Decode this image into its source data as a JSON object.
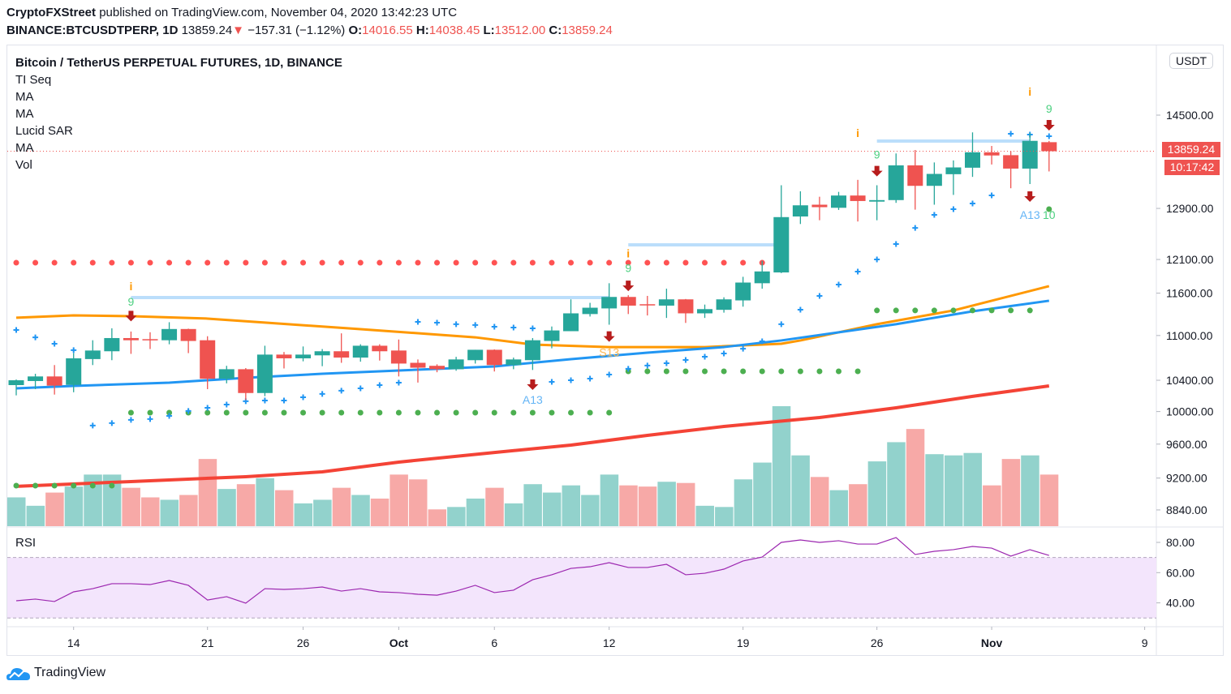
{
  "header": {
    "publisher": "CryptoFXStreet",
    "published_text": "published on TradingView.com, November 04, 2020 13:42:23 UTC",
    "symbol": "BINANCE:BTCUSDTPERP, 1D",
    "last": "13859.24",
    "change": "−157.31 (−1.12%)",
    "o_label": "O:",
    "o": "14016.55",
    "h_label": "H:",
    "h": "14038.45",
    "l_label": "L:",
    "l": "13512.00",
    "c_label": "C:",
    "c": "13859.24"
  },
  "legend": {
    "title": "Bitcoin / TetherUS PERPETUAL FUTURES, 1D, BINANCE",
    "items": [
      "TI Seq",
      "MA",
      "MA",
      "Lucid SAR",
      "MA",
      "Vol"
    ]
  },
  "price_axis": {
    "currency": "USDT",
    "last_price": "13859.24",
    "countdown": "10:17:42",
    "ticks": [
      "14500.00",
      "12900.00",
      "12100.00",
      "11600.00",
      "11000.00",
      "10400.00",
      "10000.00",
      "9600.00",
      "9200.00",
      "8840.00"
    ]
  },
  "rsi": {
    "label": "RSI",
    "ticks": [
      "80.00",
      "60.00",
      "40.00"
    ],
    "upper_band": 70,
    "lower_band": 30
  },
  "time_axis": [
    {
      "label": "14",
      "date": "2020-09-14",
      "bold": false
    },
    {
      "label": "21",
      "date": "2020-09-21",
      "bold": false
    },
    {
      "label": "26",
      "date": "2020-09-26",
      "bold": false
    },
    {
      "label": "Oct",
      "date": "2020-10-01",
      "bold": true
    },
    {
      "label": "6",
      "date": "2020-10-06",
      "bold": false
    },
    {
      "label": "12",
      "date": "2020-10-12",
      "bold": false
    },
    {
      "label": "19",
      "date": "2020-10-19",
      "bold": false
    },
    {
      "label": "26",
      "date": "2020-10-26",
      "bold": false
    },
    {
      "label": "Nov",
      "date": "2020-11-01",
      "bold": true
    },
    {
      "label": "9",
      "date": "2020-11-09",
      "bold": false
    }
  ],
  "footer": {
    "brand": "TradingView"
  },
  "colors": {
    "up": "#26a69a",
    "down": "#ef5350",
    "vol_up": "#92d2cc",
    "vol_down": "#f7a9a7",
    "ma_orange": "#ff9800",
    "ma_blue": "#2196f3",
    "ma_red": "#f44336",
    "sar_red": "#ff5252",
    "sar_green": "#4caf50",
    "cross": "#2196f3",
    "rsi": "#9c27b0",
    "rsi_band": "#f3e5fc",
    "resistance": "#bbdefb",
    "arrow": "#b71c1c",
    "setup_i": "#ff9800",
    "count": "#4cd080",
    "a13": "#64b5f6",
    "s13": "#ffb74d"
  },
  "chart_data": {
    "type": "candlestick",
    "scale": "log",
    "ylim": [
      8840,
      14500
    ],
    "columns": [
      "date",
      "open",
      "high",
      "low",
      "close",
      "volume_relative_pct"
    ],
    "candles": [
      [
        "2020-09-11",
        10337,
        10410,
        10205,
        10400,
        24
      ],
      [
        "2020-09-12",
        10390,
        10485,
        10285,
        10450,
        17
      ],
      [
        "2020-09-13",
        10450,
        10600,
        10215,
        10330,
        28
      ],
      [
        "2020-09-14",
        10340,
        10760,
        10245,
        10690,
        33
      ],
      [
        "2020-09-15",
        10680,
        10935,
        10600,
        10795,
        43
      ],
      [
        "2020-09-16",
        10785,
        11100,
        10665,
        10965,
        43
      ],
      [
        "2020-09-17",
        10965,
        11055,
        10750,
        10935,
        32
      ],
      [
        "2020-09-18",
        10950,
        11045,
        10815,
        10945,
        24
      ],
      [
        "2020-09-19",
        10935,
        11185,
        10880,
        11090,
        22
      ],
      [
        "2020-09-20",
        11090,
        11095,
        10760,
        10925,
        26
      ],
      [
        "2020-09-21",
        10935,
        10990,
        10285,
        10420,
        56
      ],
      [
        "2020-09-22",
        10420,
        10590,
        10360,
        10545,
        31
      ],
      [
        "2020-09-23",
        10545,
        10560,
        10145,
        10235,
        35
      ],
      [
        "2020-09-24",
        10235,
        10860,
        10195,
        10740,
        40
      ],
      [
        "2020-09-25",
        10740,
        10775,
        10555,
        10690,
        30
      ],
      [
        "2020-09-26",
        10690,
        10850,
        10650,
        10740,
        19
      ],
      [
        "2020-09-27",
        10730,
        10815,
        10585,
        10785,
        22
      ],
      [
        "2020-09-28",
        10785,
        11030,
        10630,
        10700,
        32
      ],
      [
        "2020-09-29",
        10700,
        10880,
        10645,
        10860,
        26
      ],
      [
        "2020-09-30",
        10860,
        10880,
        10660,
        10785,
        23
      ],
      [
        "2020-10-01",
        10795,
        10945,
        10450,
        10620,
        43
      ],
      [
        "2020-10-02",
        10630,
        10675,
        10370,
        10565,
        39
      ],
      [
        "2020-10-03",
        10590,
        10610,
        10505,
        10545,
        14
      ],
      [
        "2020-10-04",
        10545,
        10710,
        10525,
        10675,
        16
      ],
      [
        "2020-10-05",
        10665,
        10805,
        10620,
        10805,
        23
      ],
      [
        "2020-10-06",
        10805,
        10810,
        10515,
        10600,
        32
      ],
      [
        "2020-10-07",
        10600,
        10700,
        10545,
        10675,
        19
      ],
      [
        "2020-10-08",
        10665,
        10965,
        10535,
        10935,
        35
      ],
      [
        "2020-10-09",
        10925,
        11125,
        10825,
        11070,
        28
      ],
      [
        "2020-10-10",
        11060,
        11510,
        11060,
        11310,
        34
      ],
      [
        "2020-10-11",
        11300,
        11460,
        11265,
        11390,
        26
      ],
      [
        "2020-10-12",
        11380,
        11745,
        11150,
        11545,
        43
      ],
      [
        "2020-10-13",
        11545,
        11570,
        11300,
        11420,
        34
      ],
      [
        "2020-10-14",
        11440,
        11560,
        11280,
        11430,
        33
      ],
      [
        "2020-10-15",
        11420,
        11665,
        11245,
        11510,
        37
      ],
      [
        "2020-10-16",
        11510,
        11515,
        11175,
        11310,
        36
      ],
      [
        "2020-10-17",
        11310,
        11435,
        11245,
        11370,
        17
      ],
      [
        "2020-10-18",
        11360,
        11540,
        11320,
        11510,
        16
      ],
      [
        "2020-10-19",
        11495,
        11840,
        11405,
        11755,
        39
      ],
      [
        "2020-10-20",
        11745,
        12080,
        11665,
        11920,
        53
      ],
      [
        "2020-10-21",
        11905,
        13280,
        11895,
        12760,
        100
      ],
      [
        "2020-10-22",
        12770,
        13180,
        12650,
        12950,
        59
      ],
      [
        "2020-10-23",
        12960,
        13090,
        12710,
        12920,
        41
      ],
      [
        "2020-10-24",
        12910,
        13170,
        12875,
        13110,
        30
      ],
      [
        "2020-10-25",
        13110,
        13370,
        12690,
        13020,
        35
      ],
      [
        "2020-10-26",
        13010,
        13280,
        12710,
        13035,
        54
      ],
      [
        "2020-10-27",
        13035,
        13820,
        12990,
        13615,
        70
      ],
      [
        "2020-10-28",
        13615,
        13880,
        12880,
        13270,
        81
      ],
      [
        "2020-10-29",
        13270,
        13665,
        12960,
        13470,
        60
      ],
      [
        "2020-10-30",
        13465,
        13700,
        13120,
        13580,
        59
      ],
      [
        "2020-10-31",
        13575,
        14190,
        13420,
        13840,
        61
      ],
      [
        "2020-11-01",
        13840,
        13950,
        13630,
        13785,
        34
      ],
      [
        "2020-11-02",
        13790,
        13860,
        13230,
        13560,
        56
      ],
      [
        "2020-11-03",
        13560,
        14180,
        13300,
        14040,
        59
      ],
      [
        "2020-11-04",
        14016.55,
        14038.45,
        13512,
        13859.24,
        43
      ]
    ],
    "crosses": [
      11077,
      10975,
      10887,
      10800,
      9826,
      9856,
      9896,
      9906,
      9946,
      10007,
      10047,
      10088,
      10130,
      10140,
      10140,
      10181,
      10223,
      10265,
      10295,
      10337,
      10369,
      11190,
      11178,
      11157,
      11146,
      11122,
      11110,
      11099,
      10379,
      10400,
      10421,
      10475,
      10550,
      10593,
      10625,
      10668,
      10712,
      10755,
      10820,
      10920,
      11157,
      11361,
      11559,
      11725,
      11918,
      12100,
      12337,
      12589,
      12796,
      12888,
      12979,
      13112,
      14165,
      14150,
      14121
    ],
    "sar_green": [
      9113,
      9113,
      9113,
      9113,
      9113,
      9113,
      9986,
      9986,
      9986,
      9986,
      9986,
      9986,
      9986,
      9986,
      9986,
      9986,
      9986,
      9986,
      9986,
      9986,
      9986,
      9986,
      9986,
      9986,
      9986,
      9986,
      9986,
      9986,
      9986,
      9986,
      9986,
      9986,
      10517,
      10517,
      10517,
      10517,
      10517,
      10517,
      10517,
      10517,
      10517,
      10517,
      10517,
      10517,
      10517,
      11351,
      11351,
      11351,
      11351,
      11351,
      11351,
      11351,
      11351,
      11351,
      12888
    ],
    "sar_red": [
      12051,
      12051,
      12051,
      12051,
      12051,
      12051,
      12051,
      12051,
      12051,
      12051,
      12051,
      12051,
      12051,
      12051,
      12051,
      12051,
      12051,
      12051,
      12051,
      12051,
      12051,
      12051,
      12051,
      12051,
      12051,
      12051,
      12051,
      12051,
      12051,
      12051,
      12051,
      12051,
      12051,
      12051,
      12051,
      12051,
      12051,
      12051,
      12051,
      12051,
      null,
      null,
      null,
      null,
      null,
      null,
      null,
      null,
      null,
      null,
      null,
      null,
      null,
      null,
      null
    ],
    "ma_orange": [
      [
        "2020-09-11",
        11248
      ],
      [
        "2020-09-14",
        11281
      ],
      [
        "2020-09-17",
        11270
      ],
      [
        "2020-09-21",
        11236
      ],
      [
        "2020-09-24",
        11180
      ],
      [
        "2020-09-29",
        11088
      ],
      [
        "2020-10-05",
        10975
      ],
      [
        "2020-10-08",
        10876
      ],
      [
        "2020-10-12",
        10842
      ],
      [
        "2020-10-17",
        10842
      ],
      [
        "2020-10-21",
        10887
      ],
      [
        "2020-10-22",
        10932
      ],
      [
        "2020-10-26",
        11157
      ],
      [
        "2020-10-30",
        11351
      ],
      [
        "2020-11-04",
        11702
      ]
    ],
    "ma_blue": [
      [
        "2020-09-11",
        10295
      ],
      [
        "2020-09-14",
        10327
      ],
      [
        "2020-09-19",
        10369
      ],
      [
        "2020-09-23",
        10432
      ],
      [
        "2020-09-27",
        10485
      ],
      [
        "2020-10-01",
        10528
      ],
      [
        "2020-10-06",
        10582
      ],
      [
        "2020-10-10",
        10679
      ],
      [
        "2020-10-14",
        10766
      ],
      [
        "2020-10-18",
        10842
      ],
      [
        "2020-10-21",
        10932
      ],
      [
        "2020-10-27",
        11157
      ],
      [
        "2020-10-31",
        11339
      ],
      [
        "2020-11-04",
        11490
      ]
    ],
    "ma_red": [
      [
        "2020-09-11",
        9105
      ],
      [
        "2020-09-17",
        9160
      ],
      [
        "2020-09-23",
        9216
      ],
      [
        "2020-09-27",
        9272
      ],
      [
        "2020-10-01",
        9386
      ],
      [
        "2020-10-06",
        9500
      ],
      [
        "2020-10-10",
        9588
      ],
      [
        "2020-10-14",
        9706
      ],
      [
        "2020-10-18",
        9815
      ],
      [
        "2020-10-23",
        9925
      ],
      [
        "2020-10-27",
        10047
      ],
      [
        "2020-10-31",
        10192
      ],
      [
        "2020-11-04",
        10327
      ]
    ],
    "resistance": [
      {
        "from": "2020-09-17",
        "to": "2020-10-12",
        "price": 11536
      },
      {
        "from": "2020-10-13",
        "to": "2020-10-21",
        "price": 12324
      },
      {
        "from": "2020-10-26",
        "to": "2020-11-03",
        "price": 14036
      }
    ],
    "signals": [
      {
        "date": "2020-09-17",
        "kind": "text",
        "text": "i",
        "color": "setup_i",
        "price": 11702
      },
      {
        "date": "2020-09-17",
        "kind": "text",
        "text": "9",
        "color": "count",
        "price": 11478
      },
      {
        "date": "2020-09-17",
        "kind": "arrow",
        "price": 11265
      },
      {
        "date": "2020-10-13",
        "kind": "text",
        "text": "i",
        "color": "setup_i",
        "price": 12196
      },
      {
        "date": "2020-10-13",
        "kind": "text",
        "text": "9",
        "color": "count",
        "price": 11975
      },
      {
        "date": "2020-10-13",
        "kind": "arrow",
        "price": 11700
      },
      {
        "date": "2020-10-12",
        "kind": "arrow",
        "price": 10980
      },
      {
        "date": "2020-10-12",
        "kind": "text",
        "text": "S13",
        "color": "s13",
        "price": 10772
      },
      {
        "date": "2020-10-08",
        "kind": "arrow",
        "price": 10337
      },
      {
        "date": "2020-10-08",
        "kind": "text",
        "text": "A13",
        "color": "a13",
        "price": 10150
      },
      {
        "date": "2020-10-25",
        "kind": "text",
        "text": "i",
        "color": "setup_i",
        "price": 14180
      },
      {
        "date": "2020-10-26",
        "kind": "text",
        "text": "9",
        "color": "count",
        "price": 13800
      },
      {
        "date": "2020-10-26",
        "kind": "arrow",
        "price": 13510
      },
      {
        "date": "2020-11-03",
        "kind": "text",
        "text": "i",
        "color": "setup_i",
        "price": 14935
      },
      {
        "date": "2020-11-03",
        "kind": "arrow",
        "price": 13086
      },
      {
        "date": "2020-11-03",
        "kind": "text",
        "text": "A13",
        "color": "a13",
        "price": 12795
      },
      {
        "date": "2020-11-04",
        "kind": "text",
        "text": "9",
        "color": "count",
        "price": 14620
      },
      {
        "date": "2020-11-04",
        "kind": "arrow",
        "price": 14310
      },
      {
        "date": "2020-11-04",
        "kind": "text",
        "text": "10",
        "color": "count",
        "price": 12795
      }
    ],
    "rsi_values": [
      41.4,
      42.5,
      40.9,
      47.3,
      49.4,
      52.7,
      52.7,
      52.1,
      54.8,
      51.6,
      41.9,
      44.1,
      39.8,
      49.4,
      48.9,
      49.4,
      50.5,
      47.8,
      49.4,
      47.3,
      46.8,
      45.7,
      45.1,
      47.8,
      51.6,
      46.8,
      48.4,
      55.3,
      58.6,
      62.8,
      63.9,
      66.6,
      63.4,
      63.4,
      65.5,
      58.6,
      59.6,
      62.3,
      67.7,
      70.3,
      80.0,
      81.6,
      80.0,
      81.1,
      78.9,
      78.9,
      83.2,
      72.0,
      74.1,
      75.2,
      77.3,
      76.2,
      70.9,
      75.2,
      71.4
    ]
  }
}
